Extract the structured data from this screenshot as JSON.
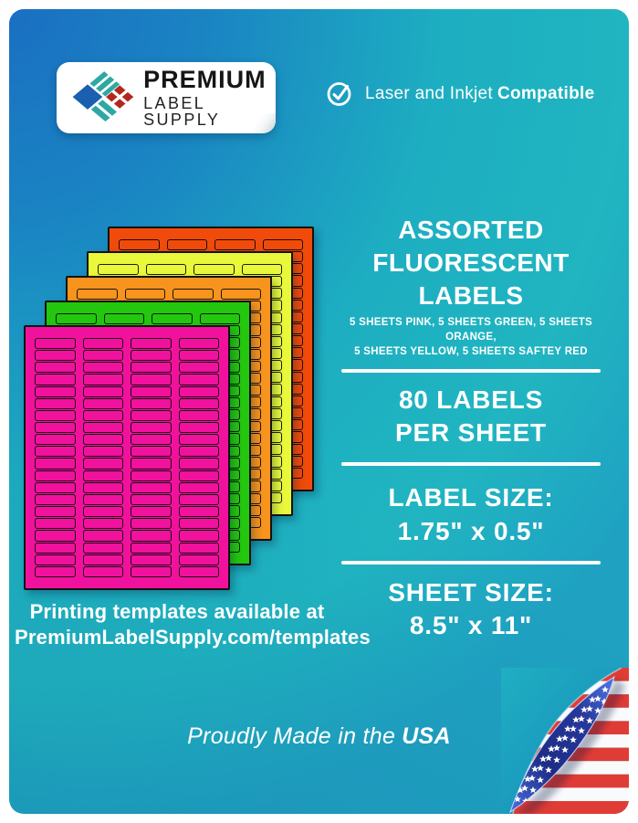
{
  "brand": {
    "top": "PREMIUM",
    "bottom": "LABEL SUPPLY"
  },
  "compatibility": {
    "regular": "Laser and Inkjet",
    "bold": "Compatible",
    "icon": "check-circle-icon"
  },
  "headline": {
    "line1": "ASSORTED",
    "line2": "FLUORESCENT LABELS"
  },
  "contents_note": {
    "line1": "5 SHEETS PINK, 5 SHEETS GREEN, 5 SHEETS ORANGE,",
    "line2": "5 SHEETS YELLOW, 5 SHEETS SAFTEY RED"
  },
  "specs": [
    {
      "line1": "80 LABELS",
      "line2": "PER SHEET"
    },
    {
      "line1": "LABEL SIZE:",
      "line2": "1.75\" x 0.5\""
    },
    {
      "line1": "SHEET SIZE:",
      "line2": "8.5\" x 11\""
    }
  ],
  "templates_note": {
    "line1": "Printing templates available at",
    "line2": "PremiumLabelSupply.com/templates"
  },
  "footer": {
    "prefix": "Proudly Made in the",
    "bold": "USA"
  },
  "sheets": {
    "rows": 20,
    "cols": 4,
    "labels_per_sheet": 80,
    "stack": [
      {
        "name": "safety-red",
        "color": "#f04b0b"
      },
      {
        "name": "yellow",
        "color": "#e9f83a"
      },
      {
        "name": "orange",
        "color": "#f7941d"
      },
      {
        "name": "green",
        "color": "#23c70e"
      },
      {
        "name": "pink",
        "color": "#f0129d"
      }
    ]
  },
  "colors": {
    "background_blue": "#1a6fc2",
    "background_teal": "#20b5c1",
    "logo_blue": "#1b5fb0",
    "logo_teal": "#2ea8a4",
    "logo_red": "#b3281e",
    "logo_text": "#161616",
    "flag_red": "#e03c36",
    "flag_white": "#f8fafc",
    "flag_navy": "#27379a"
  }
}
